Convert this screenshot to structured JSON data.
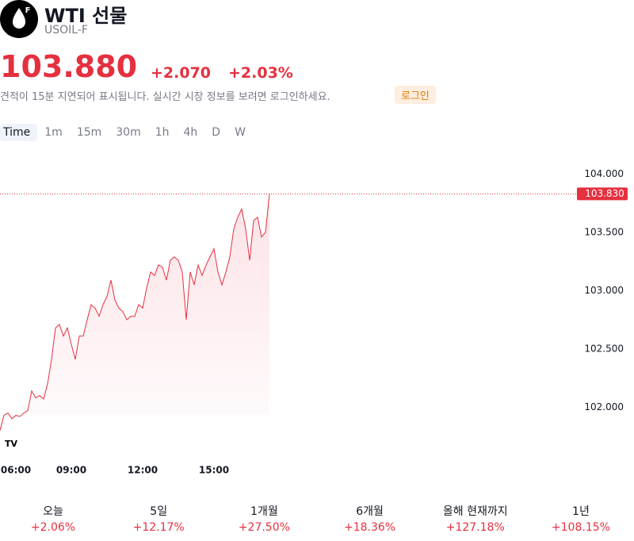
{
  "header": {
    "title": "WTI 선물",
    "symbol": "USOIL-F",
    "price": "103.880",
    "change": "+2.070",
    "change_pct": "+2.03%",
    "notice": "견적이 15분 지연되어 표시됩니다. 실시간 시장 정보를 보려면 로그인하세요.",
    "login": "로그인"
  },
  "tabs": [
    "Time",
    "1m",
    "15m",
    "30m",
    "1h",
    "4h",
    "D",
    "W"
  ],
  "chart_data": {
    "type": "line",
    "categories": [
      null,
      null,
      null,
      null,
      "06:00",
      null,
      null,
      null,
      null,
      null,
      null,
      null,
      null,
      null,
      null,
      null,
      null,
      null,
      "09:00",
      null,
      null,
      null,
      null,
      null,
      null,
      null,
      null,
      null,
      null,
      null,
      null,
      null,
      null,
      null,
      null,
      null,
      "12:00",
      null,
      null,
      null,
      null,
      null,
      null,
      null,
      null,
      null,
      null,
      null,
      null,
      null,
      null,
      null,
      null,
      null,
      "15:00",
      null,
      null,
      null,
      null,
      null,
      null,
      null,
      null,
      null,
      null,
      null,
      null,
      null,
      null
    ],
    "series": [
      {
        "color": "#e5303f",
        "values": [
          101.8,
          101.93,
          101.95,
          101.9,
          101.93,
          101.92,
          101.95,
          101.97,
          102.14,
          102.08,
          102.1,
          102.07,
          102.2,
          102.41,
          102.68,
          102.71,
          102.61,
          102.68,
          102.54,
          102.41,
          102.61,
          102.61,
          102.75,
          102.88,
          102.85,
          102.78,
          102.88,
          102.95,
          103.09,
          102.92,
          102.85,
          102.82,
          102.75,
          102.78,
          102.78,
          102.88,
          102.85,
          103.02,
          103.16,
          103.13,
          103.22,
          103.2,
          103.09,
          103.26,
          103.29,
          103.26,
          103.16,
          102.75,
          103.16,
          103.05,
          103.22,
          103.13,
          103.22,
          103.29,
          103.36,
          103.16,
          103.05,
          103.16,
          103.29,
          103.53,
          103.63,
          103.7,
          103.53,
          103.26,
          103.6,
          103.63,
          103.46,
          103.5,
          103.83
        ]
      }
    ],
    "ylim": [
      101.73,
      104.2
    ],
    "yticks": [
      {
        "value": 102,
        "label": "102.000"
      },
      {
        "value": 102.5,
        "label": "102.500"
      },
      {
        "value": 103,
        "label": "103.000"
      },
      {
        "value": 103.5,
        "label": "103.500"
      },
      {
        "value": 104,
        "label": "104.000"
      }
    ],
    "price_line": {
      "value": 103.83,
      "label": "103.830"
    }
  },
  "performance": [
    {
      "label": "오늘",
      "value": "+2.06%"
    },
    {
      "label": "5일",
      "value": "+12.17%"
    },
    {
      "label": "1개월",
      "value": "+27.50%"
    },
    {
      "label": "6개월",
      "value": "+18.36%"
    },
    {
      "label": "올해 현재까지",
      "value": "+127.18%"
    },
    {
      "label": "1년",
      "value": "+108.15%"
    }
  ]
}
